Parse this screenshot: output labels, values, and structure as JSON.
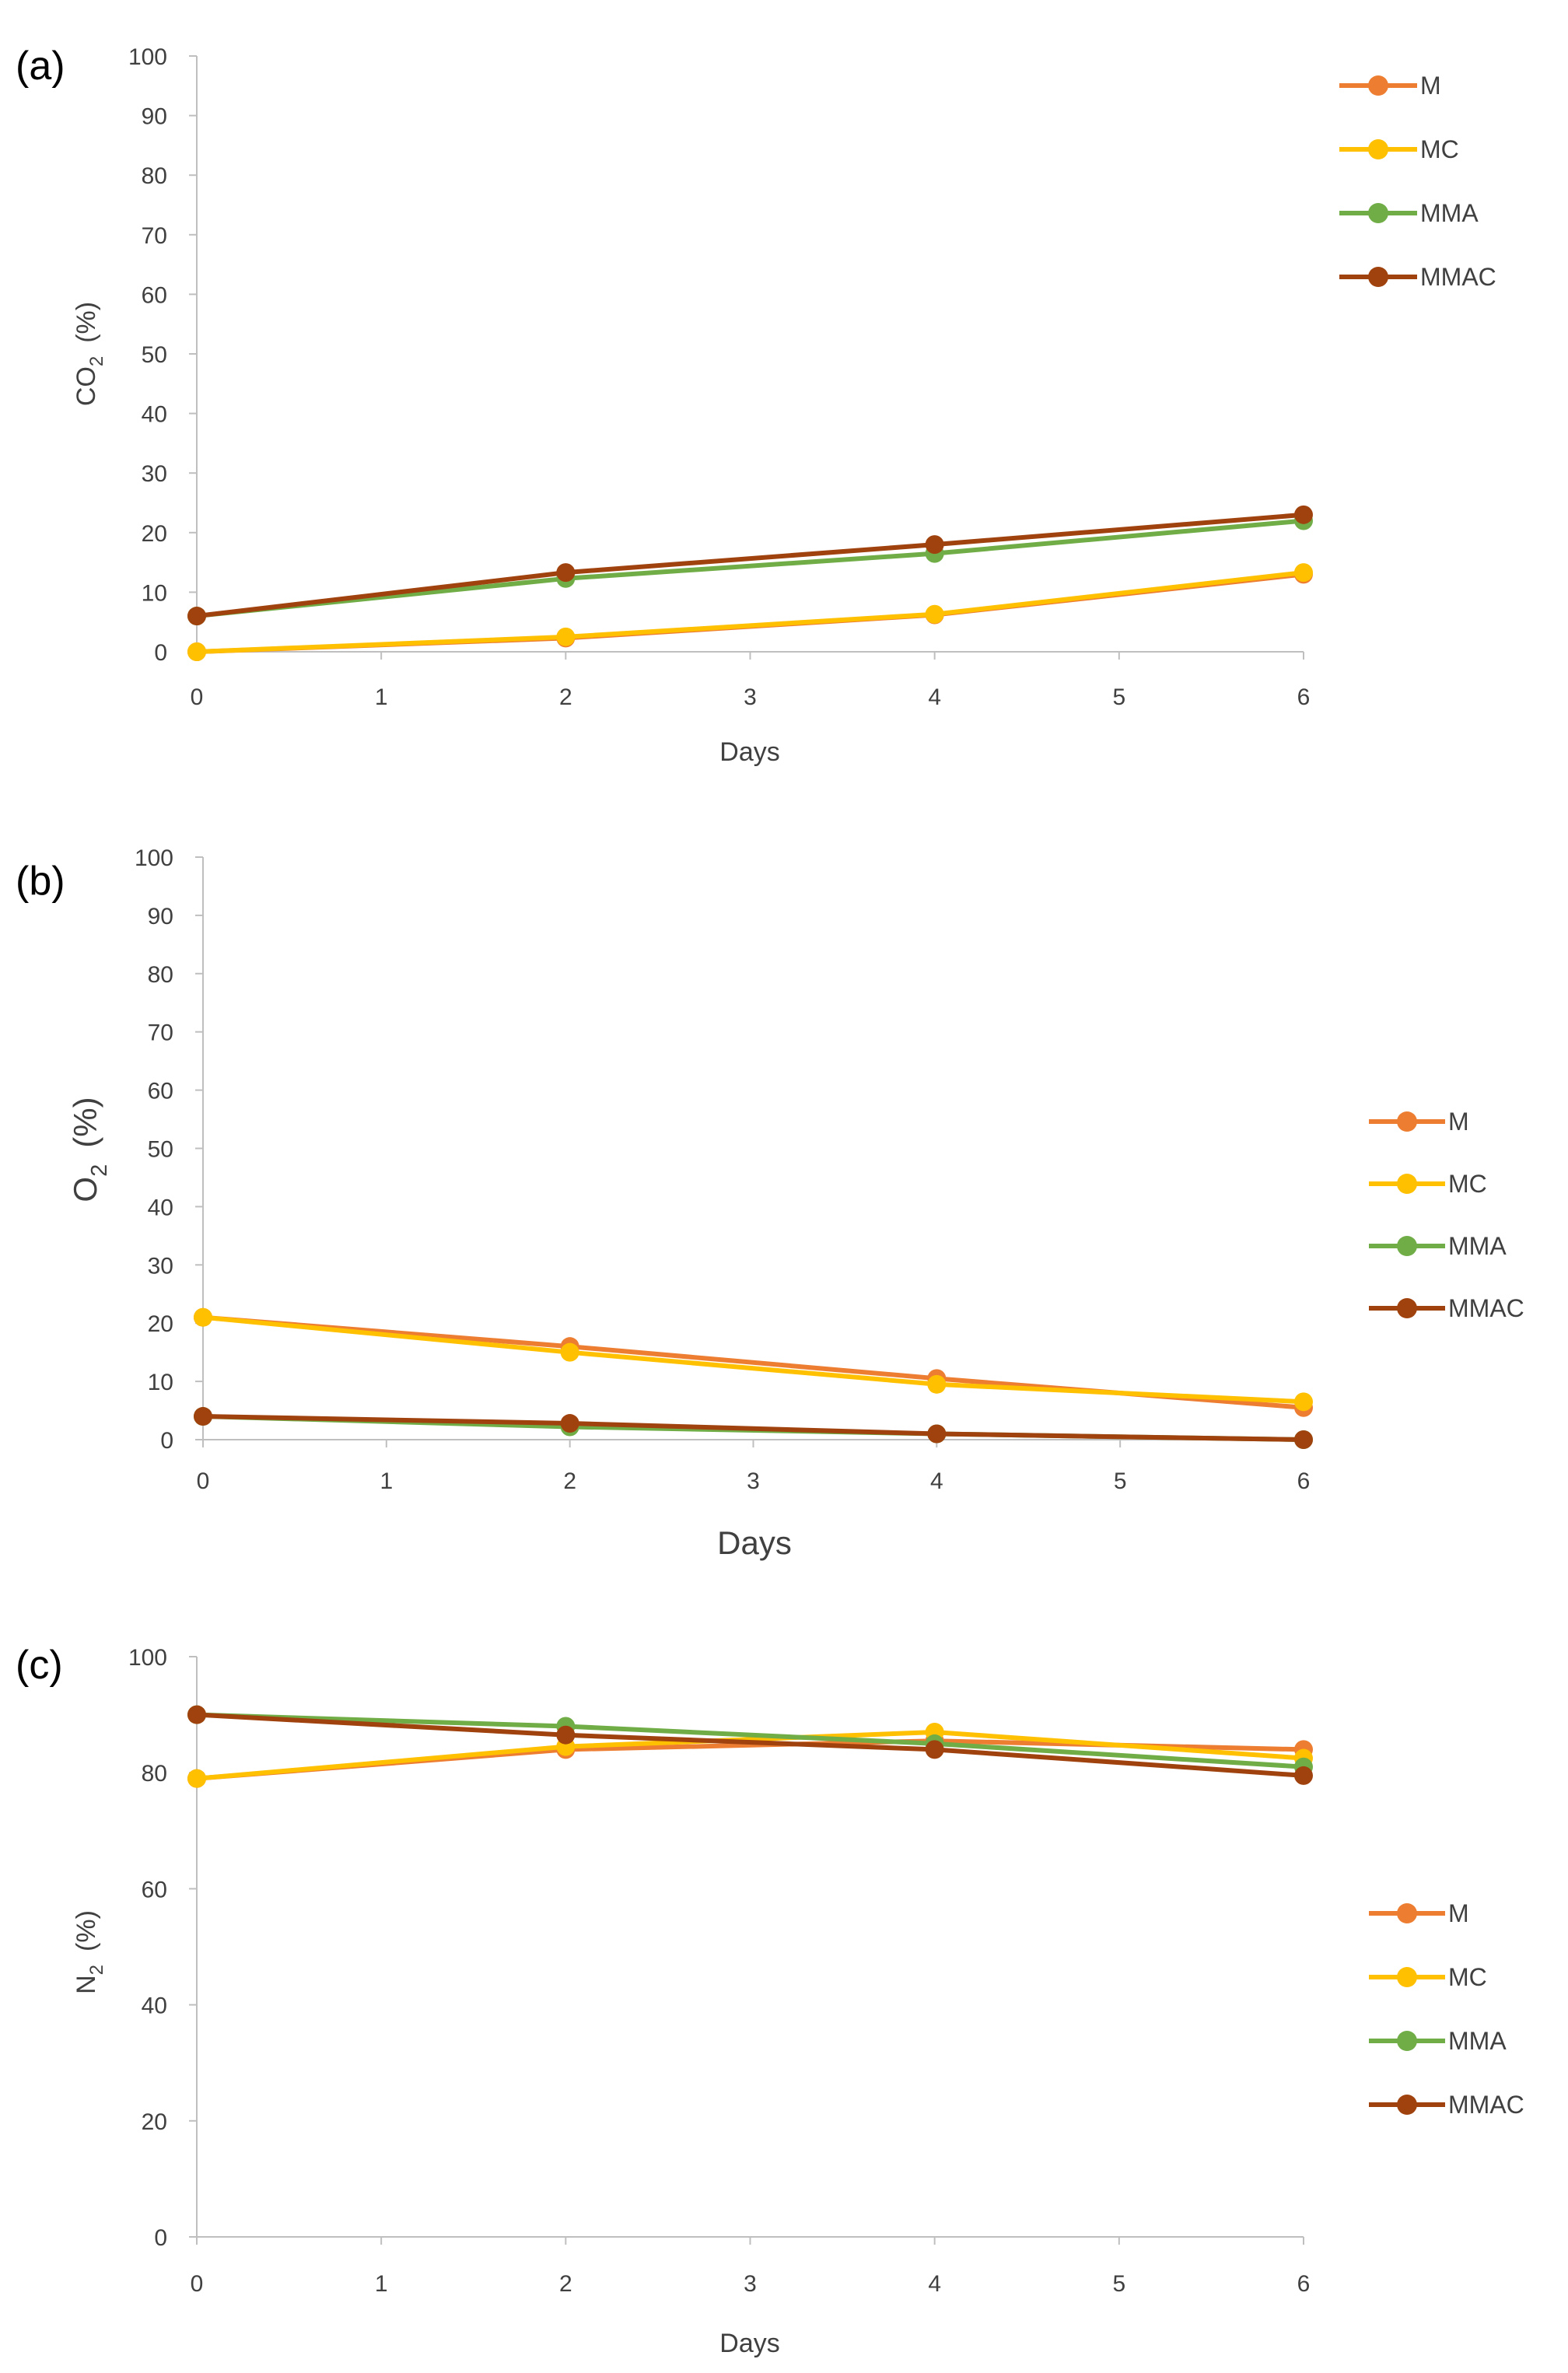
{
  "series_styles": [
    {
      "name": "M",
      "color": "#ED7D31"
    },
    {
      "name": "MC",
      "color": "#FFC000"
    },
    {
      "name": "MMA",
      "color": "#70AD47"
    },
    {
      "name": "MMAC",
      "color": "#A0420E"
    }
  ],
  "chart_data": [
    {
      "type": "line",
      "panel_label": "(a)",
      "xlabel": "Days",
      "ylabel_main": "CO",
      "ylabel_sub": "2",
      "ylabel_unit": "(%)",
      "x_ticks": [
        "0",
        "1",
        "2",
        "3",
        "4",
        "5",
        "6"
      ],
      "y_ticks": [
        "0",
        "10",
        "20",
        "30",
        "40",
        "50",
        "60",
        "70",
        "80",
        "90",
        "100"
      ],
      "xlim": [
        0,
        6
      ],
      "ylim": [
        0,
        100
      ],
      "grid": false,
      "legend_position": "top-right",
      "x": [
        0,
        2,
        4,
        6
      ],
      "series": [
        {
          "name": "M",
          "values": [
            0,
            2.3,
            6.2,
            13
          ]
        },
        {
          "name": "MC",
          "values": [
            0,
            2.5,
            6.3,
            13.3
          ]
        },
        {
          "name": "MMA",
          "values": [
            6,
            12.3,
            16.5,
            22
          ]
        },
        {
          "name": "MMAC",
          "values": [
            6,
            13.3,
            18,
            23
          ]
        }
      ]
    },
    {
      "type": "line",
      "panel_label": "(b)",
      "xlabel": "Days",
      "ylabel_main": "O",
      "ylabel_sub": "2",
      "ylabel_unit": "(%)",
      "x_ticks": [
        "0",
        "1",
        "2",
        "3",
        "4",
        "5",
        "6"
      ],
      "y_ticks": [
        "0",
        "10",
        "20",
        "30",
        "40",
        "50",
        "60",
        "70",
        "80",
        "90",
        "100"
      ],
      "xlim": [
        0,
        6
      ],
      "ylim": [
        0,
        100
      ],
      "grid": false,
      "legend_position": "right",
      "x": [
        0,
        2,
        4,
        6
      ],
      "series": [
        {
          "name": "M",
          "values": [
            21,
            16,
            10.5,
            5.5
          ]
        },
        {
          "name": "MC",
          "values": [
            21,
            15,
            9.5,
            6.5
          ]
        },
        {
          "name": "MMA",
          "values": [
            4,
            2.2,
            1,
            0
          ]
        },
        {
          "name": "MMAC",
          "values": [
            4,
            2.8,
            1,
            0
          ]
        }
      ]
    },
    {
      "type": "line",
      "panel_label": "(c)",
      "xlabel": "Days",
      "ylabel_main": "N",
      "ylabel_sub": "2",
      "ylabel_unit": "(%)",
      "x_ticks": [
        "0",
        "1",
        "2",
        "3",
        "4",
        "5",
        "6"
      ],
      "y_ticks": [
        "0",
        "20",
        "40",
        "60",
        "80",
        "100"
      ],
      "xlim": [
        0,
        6
      ],
      "ylim": [
        0,
        100
      ],
      "grid": false,
      "legend_position": "right",
      "x": [
        0,
        2,
        4,
        6
      ],
      "series": [
        {
          "name": "M",
          "values": [
            79,
            84,
            85.5,
            84
          ]
        },
        {
          "name": "MC",
          "values": [
            79,
            84.5,
            87,
            82.5
          ]
        },
        {
          "name": "MMA",
          "values": [
            90,
            88,
            85,
            81
          ]
        },
        {
          "name": "MMAC",
          "values": [
            90,
            86.5,
            84,
            79.5
          ]
        }
      ]
    }
  ]
}
